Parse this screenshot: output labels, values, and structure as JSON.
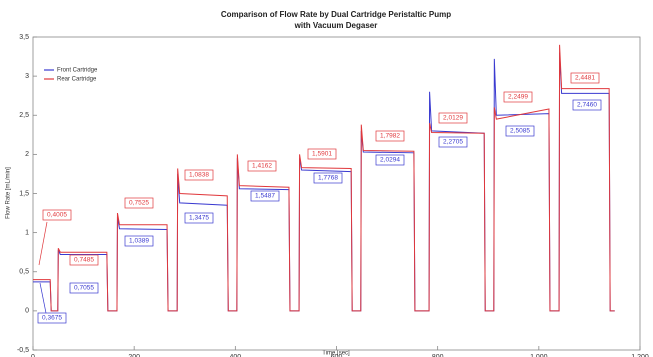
{
  "chart_data": {
    "type": "line",
    "title": "Comparison of Flow Rate by Dual Cartridge Peristaltic Pump",
    "subtitle": "with Vacuum Degaser",
    "x_label": "Time [sec]",
    "y_label": "Flow Rate [mL/min]",
    "xlim": [
      0,
      1200
    ],
    "xticks": [
      0,
      200,
      400,
      600,
      800,
      {
        "value": 1000,
        "label": "1,000"
      },
      {
        "value": 1200,
        "label": "1,200"
      }
    ],
    "ylim": [
      -0.5,
      3.5
    ],
    "yticks": [
      {
        "value": -0.5,
        "label": "-0,5"
      },
      0,
      {
        "value": 0.5,
        "label": "0,5"
      },
      1,
      {
        "value": 1.5,
        "label": "1,5"
      },
      2,
      {
        "value": 2.5,
        "label": "2,5"
      },
      3,
      {
        "value": 3.5,
        "label": "3,5"
      }
    ],
    "legend": "upper left",
    "x": [
      0,
      34,
      36,
      49,
      50,
      54,
      146,
      148,
      166,
      167,
      171,
      265,
      267,
      285,
      286,
      290,
      384,
      386,
      403,
      404,
      408,
      506,
      508,
      526,
      527,
      531,
      629,
      631,
      648,
      649,
      653,
      753,
      755,
      783,
      784,
      788,
      892,
      894,
      911,
      912,
      916,
      1020,
      1022,
      1040,
      1041,
      1045,
      1139,
      1141,
      1150
    ],
    "series": [
      {
        "name": "Front Cartridge",
        "color": "#3a3ad0",
        "values": [
          0.37,
          0.37,
          0,
          0,
          0.78,
          0.72,
          0.72,
          0,
          0,
          1.2,
          1.05,
          1.04,
          0,
          0,
          1.75,
          1.38,
          1.35,
          0,
          0,
          1.95,
          1.56,
          1.55,
          0,
          0,
          1.95,
          1.8,
          1.78,
          0,
          0,
          2.3,
          2.03,
          2.02,
          0,
          0,
          2.8,
          2.3,
          2.27,
          0,
          0,
          3.22,
          2.5,
          2.52,
          0,
          0,
          3.3,
          2.78,
          2.78,
          0,
          0
        ]
      },
      {
        "name": "Rear Cartridge",
        "color": "#e0383c",
        "values": [
          0.4,
          0.4,
          0,
          0,
          0.8,
          0.75,
          0.75,
          0,
          0,
          1.25,
          1.1,
          1.1,
          0,
          0,
          1.82,
          1.5,
          1.47,
          0,
          0,
          2.0,
          1.6,
          1.58,
          0,
          0,
          2.0,
          1.83,
          1.82,
          0,
          0,
          2.38,
          2.05,
          2.04,
          0,
          0,
          2.4,
          2.28,
          2.27,
          0,
          0,
          2.6,
          2.45,
          2.58,
          0,
          0,
          3.4,
          2.84,
          2.84,
          0,
          0
        ]
      }
    ],
    "annotations": [
      {
        "text": "0,4005",
        "series": 1
      },
      {
        "text": "0,3675",
        "series": 0
      },
      {
        "text": "0,7485",
        "series": 1
      },
      {
        "text": "0,7055",
        "series": 0
      },
      {
        "text": "0,7525",
        "series": 1
      },
      {
        "text": "1,0389",
        "series": 0
      },
      {
        "text": "1,0838",
        "series": 1
      },
      {
        "text": "1,3475",
        "series": 0
      },
      {
        "text": "1,4162",
        "series": 1
      },
      {
        "text": "1,5487",
        "series": 0
      },
      {
        "text": "1,5901",
        "series": 1
      },
      {
        "text": "1,7768",
        "series": 0
      },
      {
        "text": "1,7982",
        "series": 1
      },
      {
        "text": "2,0294",
        "series": 0
      },
      {
        "text": "2,0129",
        "series": 1
      },
      {
        "text": "2,2705",
        "series": 0
      },
      {
        "text": "2,2499",
        "series": 1
      },
      {
        "text": "2,5085",
        "series": 0
      },
      {
        "text": "2,4481",
        "series": 1
      },
      {
        "text": "2,7460",
        "series": 0
      }
    ]
  }
}
